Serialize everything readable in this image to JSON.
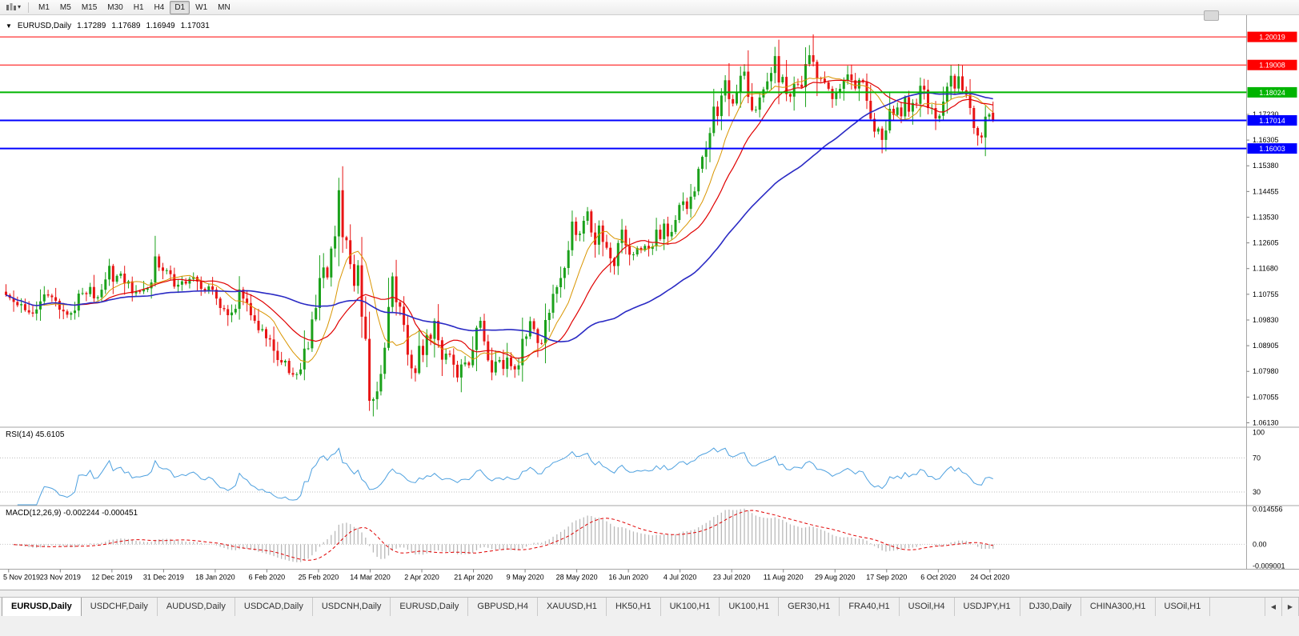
{
  "toolbar": {
    "chart_type_icon": "candlestick-chart",
    "dropdown_arrow": "▾",
    "timeframes": [
      "M1",
      "M5",
      "M15",
      "M30",
      "H1",
      "H4",
      "D1",
      "W1",
      "MN"
    ],
    "active_timeframe": "D1"
  },
  "chart": {
    "info": {
      "expand_arrow": "▼",
      "symbol_period": "EURUSD,Daily",
      "open": "1.17289",
      "high": "1.17689",
      "low": "1.16949",
      "close": "1.17031"
    },
    "y_axis_ticks": [
      "1.17230",
      "1.16305",
      "1.15380",
      "1.14455",
      "1.13530",
      "1.12605",
      "1.11680",
      "1.10755",
      "1.09830",
      "1.08905",
      "1.07980",
      "1.07055",
      "1.06130"
    ],
    "x_axis_labels": [
      "5 Nov 2019",
      "23 Nov 2019",
      "12 Dec 2019",
      "31 Dec 2019",
      "18 Jan 2020",
      "6 Feb 2020",
      "25 Feb 2020",
      "14 Mar 2020",
      "2 Apr 2020",
      "21 Apr 2020",
      "9 May 2020",
      "28 May 2020",
      "16 Jun 2020",
      "4 Jul 2020",
      "23 Jul 2020",
      "11 Aug 2020",
      "29 Aug 2020",
      "17 Sep 2020",
      "6 Oct 2020",
      "24 Oct 2020"
    ],
    "horizontal_lines": [
      {
        "price": 1.20019,
        "label": "1.20019",
        "color": "#FF0000",
        "width": 1
      },
      {
        "price": 1.19008,
        "label": "1.19008",
        "color": "#FF0000",
        "width": 1
      },
      {
        "price": 1.18024,
        "label": "1.18024",
        "color": "#00B400",
        "width": 2
      },
      {
        "price": 1.17014,
        "label": "1.17014",
        "color": "#0000FF",
        "width": 2
      },
      {
        "price": 1.16003,
        "label": "1.16003",
        "color": "#0000FF",
        "width": 2
      }
    ]
  },
  "chart_data": {
    "type": "candlestick",
    "symbol": "EURUSD",
    "period": "Daily",
    "last_ohlc": {
      "open": 1.17289,
      "high": 1.17689,
      "low": 1.16949,
      "close": 1.17031
    },
    "y_range": [
      1.06,
      1.208
    ],
    "colors": {
      "up": "#1BA11B",
      "down": "#E81414"
    },
    "closes": [
      1.1073,
      1.1062,
      1.1048,
      1.1036,
      1.104,
      1.1018,
      1.101,
      1.1006,
      1.1021,
      1.105,
      1.1075,
      1.1071,
      1.1065,
      1.1052,
      1.102,
      1.1014,
      1.1002,
      1.1008,
      1.1017,
      1.1078,
      1.108,
      1.1076,
      1.1102,
      1.1061,
      1.1065,
      1.1092,
      1.1129,
      1.1178,
      1.1121,
      1.1142,
      1.115,
      1.1114,
      1.1122,
      1.1079,
      1.1087,
      1.1086,
      1.1092,
      1.1097,
      1.1118,
      1.1212,
      1.1172,
      1.116,
      1.1162,
      1.1148,
      1.1103,
      1.111,
      1.1122,
      1.1114,
      1.1131,
      1.1138,
      1.1122,
      1.1095,
      1.1089,
      1.1104,
      1.1092,
      1.106,
      1.1026,
      1.1022,
      1.1,
      1.101,
      1.1023,
      1.1093,
      1.106,
      1.1044,
      1.1,
      1.098,
      1.0946,
      1.095,
      1.0917,
      1.0913,
      1.0872,
      1.0839,
      1.083,
      1.0836,
      1.0792,
      1.0786,
      1.0788,
      1.0805,
      1.088,
      1.0881,
      1.0985,
      1.1026,
      1.1134,
      1.1172,
      1.1136,
      1.124,
      1.1284,
      1.145,
      1.1281,
      1.127,
      1.1184,
      1.1106,
      1.118,
      1.0995,
      1.0915,
      1.0692,
      1.0698,
      1.0726,
      1.0789,
      1.0883,
      1.103,
      1.114,
      1.1047,
      1.1031,
      1.0965,
      1.0858,
      1.0809,
      1.0792,
      1.089,
      1.0857,
      1.093,
      1.0915,
      1.098,
      1.091,
      1.084,
      1.0862,
      1.0858,
      1.0822,
      1.0776,
      1.0823,
      1.083,
      1.082,
      1.0875,
      1.0955,
      1.098,
      1.0906,
      1.0838,
      1.0794,
      1.0833,
      1.0839,
      1.0807,
      1.0848,
      1.0817,
      1.0805,
      1.082,
      1.0915,
      1.0924,
      1.0979,
      1.095,
      1.09,
      1.0899,
      1.0983,
      1.1009,
      1.1077,
      1.1101,
      1.1134,
      1.117,
      1.1234,
      1.1337,
      1.1289,
      1.1294,
      1.134,
      1.1374,
      1.1298,
      1.1254,
      1.1323,
      1.1264,
      1.1243,
      1.1205,
      1.1177,
      1.126,
      1.1308,
      1.1251,
      1.1218,
      1.1219,
      1.1242,
      1.1234,
      1.125,
      1.1239,
      1.1248,
      1.1308,
      1.1274,
      1.133,
      1.1284,
      1.13,
      1.1343,
      1.1397,
      1.141,
      1.1383,
      1.1427,
      1.1446,
      1.1527,
      1.157,
      1.1598,
      1.1656,
      1.1751,
      1.1717,
      1.1791,
      1.1846,
      1.1778,
      1.1762,
      1.1802,
      1.1862,
      1.1877,
      1.1786,
      1.1738,
      1.174,
      1.1784,
      1.1813,
      1.1842,
      1.1872,
      1.1933,
      1.1838,
      1.1858,
      1.1796,
      1.1787,
      1.1833,
      1.183,
      1.1821,
      1.1904,
      1.1936,
      1.1912,
      1.1853,
      1.1852,
      1.1838,
      1.1815,
      1.1778,
      1.1801,
      1.1815,
      1.1845,
      1.1867,
      1.1846,
      1.1816,
      1.1847,
      1.1839,
      1.1772,
      1.1707,
      1.1661,
      1.1672,
      1.1631,
      1.1665,
      1.1743,
      1.1721,
      1.1748,
      1.1716,
      1.1785,
      1.1733,
      1.1764,
      1.1761,
      1.1826,
      1.1812,
      1.1746,
      1.1746,
      1.1708,
      1.1718,
      1.1769,
      1.1823,
      1.1862,
      1.1816,
      1.186,
      1.181,
      1.1794,
      1.1746,
      1.1674,
      1.1647,
      1.164,
      1.1715,
      1.1723,
      1.1703
    ],
    "overrides": [
      {
        "i": 75,
        "l": 1.0778
      },
      {
        "i": 87,
        "h": 1.1495
      },
      {
        "i": 95,
        "l": 1.0656
      },
      {
        "i": 96,
        "l": 1.0636
      },
      {
        "i": 127,
        "l": 1.0766
      },
      {
        "i": 201,
        "h": 1.1966
      },
      {
        "i": 211,
        "h": 1.2011
      },
      {
        "i": 258,
        "o": 1.17289,
        "h": 1.17689,
        "l": 1.16949,
        "c": 1.17031
      }
    ],
    "moving_averages": [
      {
        "period": 10,
        "color": "#D99500",
        "width": 1
      },
      {
        "period": 20,
        "color": "#E00000",
        "width": 1.2
      },
      {
        "period": 55,
        "color": "#2A2AC4",
        "width": 1.6
      }
    ],
    "indicators": [
      {
        "name": "RSI",
        "label": "RSI(14)",
        "value": "45.6105",
        "color": "#4DA0DF",
        "levels": [
          70,
          30
        ],
        "axis_labels": [
          "100",
          "70",
          "30"
        ],
        "axis_values": [
          100,
          70,
          30
        ],
        "range": [
          15,
          105
        ]
      },
      {
        "name": "MACD",
        "label": "MACD(12,26,9)",
        "values": "-0.002244 -0.000451",
        "histogram_color": "#b9b9b9",
        "signal_color": "#E00000",
        "axis_labels": [
          "0.014556",
          "0.00",
          "-0.009001"
        ],
        "axis_values": [
          0.014556,
          0,
          -0.009001
        ],
        "range": [
          -0.0102,
          0.0158
        ]
      }
    ]
  },
  "tabs": {
    "items": [
      "EURUSD,Daily",
      "USDCHF,Daily",
      "AUDUSD,Daily",
      "USDCAD,Daily",
      "USDCNH,Daily",
      "EURUSD,Daily",
      "GBPUSD,H4",
      "XAUUSD,H1",
      "HK50,H1",
      "UK100,H1",
      "UK100,H1",
      "GER30,H1",
      "FRA40,H1",
      "USOil,H4",
      "USDJPY,H1",
      "DJ30,Daily",
      "CHINA300,H1",
      "USOil,H1"
    ],
    "active_index": 0,
    "scroll_left_icon": "◀",
    "scroll_right_icon": "▶"
  }
}
